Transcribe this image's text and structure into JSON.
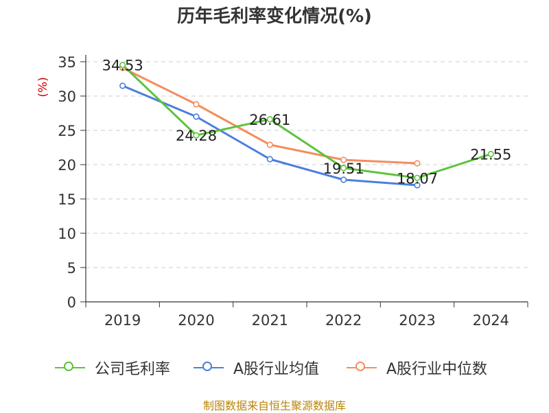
{
  "title": "历年毛利率变化情况(%)",
  "source_note": "制图数据来自恒生聚源数据库",
  "colors": {
    "company": "#5cc33b",
    "industry_avg": "#4a7fdc",
    "industry_median": "#f38d5d",
    "ylabel": "#cc0000"
  },
  "chart_data": {
    "type": "line",
    "title": "历年毛利率变化情况(%)",
    "xlabel": "",
    "ylabel": "(%)",
    "categories": [
      "2019",
      "2020",
      "2021",
      "2022",
      "2023",
      "2024"
    ],
    "ylim": [
      0,
      35
    ],
    "yticks": [
      0,
      5,
      10,
      15,
      20,
      25,
      30,
      35
    ],
    "grid": true,
    "legend_position": "bottom",
    "series": [
      {
        "name": "公司毛利率",
        "values": [
          34.53,
          24.28,
          26.61,
          19.51,
          18.07,
          21.55
        ],
        "labels": [
          "34.53",
          "24.28",
          "26.61",
          "19.51",
          "18.07",
          "21.55"
        ]
      },
      {
        "name": "A股行业均值",
        "values": [
          31.5,
          27.0,
          20.8,
          17.8,
          17.0,
          null
        ]
      },
      {
        "name": "A股行业中位数",
        "values": [
          34.1,
          28.8,
          22.9,
          20.7,
          20.2,
          null
        ]
      }
    ]
  }
}
